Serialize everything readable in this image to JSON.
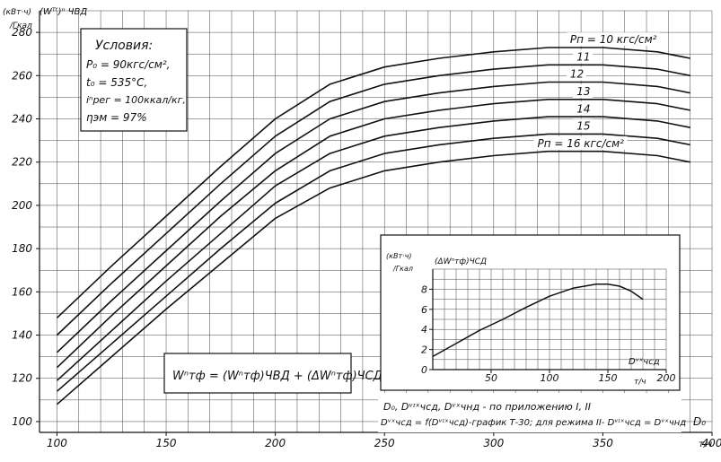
{
  "chart_data": [
    {
      "type": "line",
      "ylabel_unit_top": "(кВт·ч)",
      "ylabel_unit_bottom": "/Гкал",
      "ylabel_quantity": "(Wᵀᶠ)ⁿ ЧВД",
      "xlabel": "D₀",
      "x_unit": "т/ч",
      "xlim": [
        92,
        400
      ],
      "ylim": [
        95,
        290
      ],
      "x_ticks": [
        100,
        150,
        200,
        250,
        300,
        350,
        400
      ],
      "x_tick_labels": [
        "100",
        "150",
        "200",
        "250",
        "300",
        "350",
        "400"
      ],
      "y_ticks": [
        100,
        120,
        140,
        160,
        180,
        200,
        220,
        240,
        260,
        280
      ],
      "y_tick_labels": [
        "100",
        "120",
        "140",
        "160",
        "180",
        "200",
        "220",
        "240",
        "260",
        "280"
      ],
      "grid": true,
      "series": [
        {
          "name": "Pп = 10 кгс/см²",
          "x": [
            100,
            125,
            150,
            175,
            200,
            225,
            250,
            275,
            300,
            325,
            350,
            375,
            390
          ],
          "y": [
            148,
            172,
            195,
            218,
            240,
            256,
            264,
            268,
            271,
            273,
            273,
            271,
            268
          ]
        },
        {
          "name": "11",
          "x": [
            100,
            125,
            150,
            175,
            200,
            225,
            250,
            275,
            300,
            325,
            350,
            375,
            390
          ],
          "y": [
            140,
            164,
            187,
            210,
            232,
            248,
            256,
            260,
            263,
            265,
            265,
            263,
            260
          ]
        },
        {
          "name": "12",
          "x": [
            100,
            125,
            150,
            175,
            200,
            225,
            250,
            275,
            300,
            325,
            350,
            375,
            390
          ],
          "y": [
            132,
            156,
            179,
            202,
            224,
            240,
            248,
            252,
            255,
            257,
            257,
            255,
            252
          ]
        },
        {
          "name": "13",
          "x": [
            100,
            125,
            150,
            175,
            200,
            225,
            250,
            275,
            300,
            325,
            350,
            375,
            390
          ],
          "y": [
            125,
            149,
            172,
            195,
            216,
            232,
            240,
            244,
            247,
            249,
            249,
            247,
            244
          ]
        },
        {
          "name": "14",
          "x": [
            100,
            125,
            150,
            175,
            200,
            225,
            250,
            275,
            300,
            325,
            350,
            375,
            390
          ],
          "y": [
            119,
            142,
            165,
            187,
            209,
            224,
            232,
            236,
            239,
            241,
            241,
            239,
            236
          ]
        },
        {
          "name": "15",
          "x": [
            100,
            125,
            150,
            175,
            200,
            225,
            250,
            275,
            300,
            325,
            350,
            375,
            390
          ],
          "y": [
            114,
            136,
            158,
            180,
            201,
            216,
            224,
            228,
            231,
            233,
            233,
            231,
            228
          ]
        },
        {
          "name": "Pп = 16 кгс/см²",
          "x": [
            100,
            125,
            150,
            175,
            200,
            225,
            250,
            275,
            300,
            325,
            350,
            375,
            390
          ],
          "y": [
            108,
            130,
            152,
            173,
            194,
            208,
            216,
            220,
            223,
            225,
            225,
            223,
            220
          ]
        }
      ],
      "annotations": {
        "conditions_title": "Условия:",
        "conditions": [
          "P₀ = 90кгс/см²,",
          "t₀ = 535°C,",
          "iⁿрег = 100ккал/кг,",
          "ηэм = 97%"
        ],
        "formula_text": "Wⁿтф = (Wⁿтф)ЧВД + (ΔWⁿтф)ЧСД",
        "note_line1": "D₀, Dᵛᶦˣчсд, Dᵛˣчнд - по приложению I, II",
        "note_line2": "Dᵛˣчсд = f(Dᵛᶦˣчсд)-график Т-30; для режима II- Dᵛᶦˣчсд = Dᵛˣчнд"
      }
    },
    {
      "type": "line",
      "ylabel_unit_top": "(кВт·ч)",
      "ylabel_unit_bottom": "/Гкал",
      "ylabel_quantity": "(ΔWⁿтф)ЧСД",
      "xlabel": "Dᵛˣчсд",
      "x_unit": "т/ч",
      "xlim": [
        0,
        200
      ],
      "ylim": [
        0,
        10
      ],
      "x_ticks": [
        50,
        100,
        150,
        200
      ],
      "x_tick_labels": [
        "50",
        "100",
        "150",
        "200"
      ],
      "y_ticks": [
        0,
        2,
        4,
        6,
        8
      ],
      "y_tick_labels": [
        "0",
        "2",
        "4",
        "6",
        "8"
      ],
      "grid": true,
      "series": [
        {
          "x": [
            0,
            20,
            40,
            60,
            80,
            100,
            120,
            140,
            150,
            160,
            170,
            180
          ],
          "y": [
            1.3,
            2.6,
            3.9,
            5.0,
            6.2,
            7.3,
            8.1,
            8.5,
            8.5,
            8.3,
            7.8,
            7.0
          ]
        }
      ]
    }
  ]
}
